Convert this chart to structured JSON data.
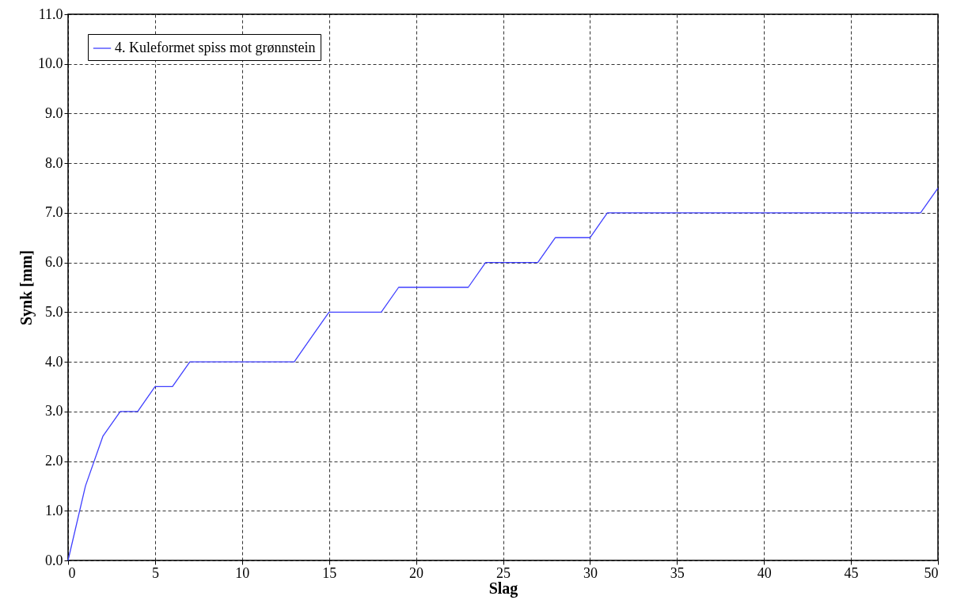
{
  "chart_data": {
    "type": "line",
    "xlabel": "Slag",
    "ylabel": "Synk [mm]",
    "x": [
      0,
      1,
      2,
      3,
      4,
      5,
      6,
      7,
      8,
      9,
      10,
      11,
      12,
      13,
      14,
      15,
      16,
      17,
      18,
      19,
      20,
      21,
      22,
      23,
      24,
      25,
      26,
      27,
      28,
      29,
      30,
      31,
      32,
      33,
      34,
      35,
      36,
      37,
      38,
      39,
      40,
      41,
      42,
      43,
      44,
      45,
      46,
      47,
      48,
      49,
      50
    ],
    "series": [
      {
        "name": "4. Kuleformet spiss mot grønnstein",
        "color": "#4040ff",
        "values": [
          0,
          1.5,
          2.5,
          3,
          3,
          3.5,
          3.5,
          4,
          4,
          4,
          4,
          4,
          4,
          4,
          4.5,
          5,
          5,
          5,
          5,
          5.5,
          5.5,
          5.5,
          5.5,
          5.5,
          6,
          6,
          6,
          6,
          6.5,
          6.5,
          6.5,
          7,
          7,
          7,
          7,
          7,
          7,
          7,
          7,
          7,
          7,
          7,
          7,
          7,
          7,
          7,
          7,
          7,
          7,
          7,
          7.5
        ]
      }
    ],
    "xlim": [
      0,
      50
    ],
    "xticks": [
      0,
      5,
      10,
      15,
      20,
      25,
      30,
      35,
      40,
      45,
      50
    ],
    "ylim": [
      0,
      11
    ],
    "yticks": [
      {
        "value": 0,
        "label": "0.0"
      },
      {
        "value": 1,
        "label": "1.0"
      },
      {
        "value": 2,
        "label": "2.0"
      },
      {
        "value": 3,
        "label": "3.0"
      },
      {
        "value": 4,
        "label": "4.0"
      },
      {
        "value": 5,
        "label": "5.0"
      },
      {
        "value": 6,
        "label": "6.0"
      },
      {
        "value": 7,
        "label": "7.0"
      },
      {
        "value": 8,
        "label": "8.0"
      },
      {
        "value": 9,
        "label": "9.0"
      },
      {
        "value": 10,
        "label": "10.0"
      },
      {
        "value": 11,
        "label": "11.0"
      }
    ],
    "grid": true,
    "legend": "top left",
    "marker": "none",
    "line_style": "solid"
  }
}
